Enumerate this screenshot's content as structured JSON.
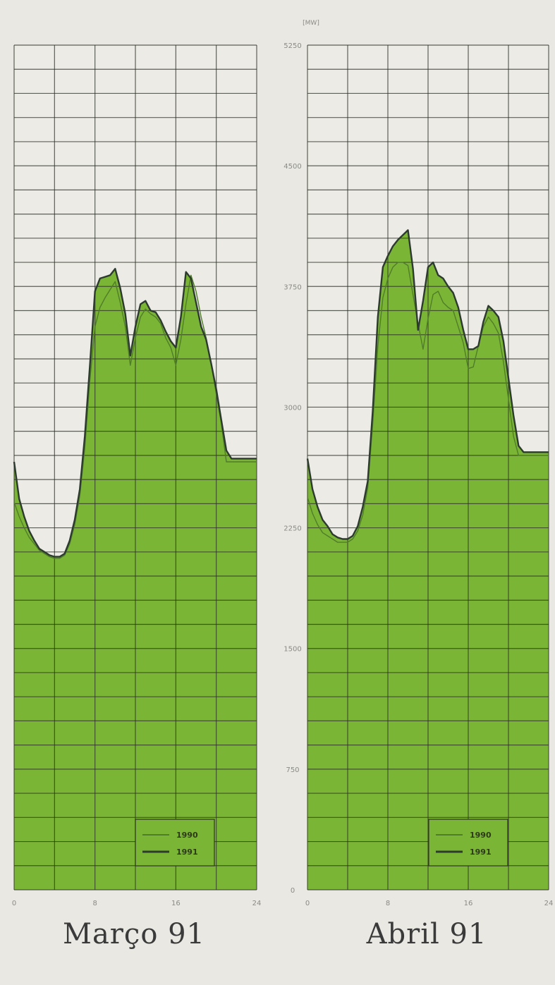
{
  "unit_label": "[MW]",
  "y_ticks": [
    "0",
    "750",
    "1500",
    "2250",
    "3000",
    "3750",
    "4500",
    "5250"
  ],
  "x_ticks": [
    "0",
    "8",
    "16",
    "24"
  ],
  "colors": {
    "fill": "#7bb535",
    "grid": "#2e3228",
    "line_1990": "#4f7d2a",
    "line_1991": "#2d3b2f",
    "background": "#e9e8e3"
  },
  "chart_data": [
    {
      "type": "line",
      "title": "Março 91",
      "xlabel": "",
      "ylabel": "[MW]",
      "xlim": [
        0,
        24
      ],
      "ylim": [
        0,
        5250
      ],
      "grid": true,
      "legend": "bottom-right",
      "x": [
        0,
        0.5,
        1,
        1.5,
        2,
        2.5,
        3,
        3.5,
        4,
        4.5,
        5,
        5.5,
        6,
        6.5,
        7,
        7.5,
        8,
        8.5,
        9,
        9.5,
        10,
        10.5,
        11,
        11.5,
        12,
        12.5,
        13,
        13.5,
        14,
        14.5,
        15,
        15.5,
        16,
        16.5,
        17,
        17.5,
        18,
        18.5,
        19,
        19.5,
        20,
        20.5,
        21,
        21.5,
        22,
        22.5,
        23,
        23.5,
        24
      ],
      "series": [
        {
          "name": "1990",
          "values": [
            2410,
            2320,
            2250,
            2190,
            2150,
            2110,
            2090,
            2070,
            2060,
            2060,
            2080,
            2150,
            2270,
            2450,
            2750,
            3170,
            3500,
            3620,
            3680,
            3730,
            3780,
            3650,
            3500,
            3260,
            3430,
            3560,
            3610,
            3580,
            3560,
            3520,
            3430,
            3370,
            3260,
            3420,
            3640,
            3820,
            3720,
            3560,
            3430,
            3270,
            3080,
            2900,
            2660,
            2660,
            2660,
            2660,
            2660,
            2660,
            2660
          ]
        },
        {
          "name": "1991",
          "values": [
            2660,
            2430,
            2320,
            2230,
            2170,
            2120,
            2100,
            2080,
            2070,
            2070,
            2090,
            2170,
            2300,
            2490,
            2820,
            3260,
            3720,
            3800,
            3810,
            3820,
            3860,
            3740,
            3580,
            3320,
            3500,
            3640,
            3660,
            3600,
            3590,
            3540,
            3470,
            3410,
            3370,
            3560,
            3840,
            3800,
            3650,
            3500,
            3420,
            3270,
            3110,
            2920,
            2730,
            2680,
            2680,
            2680,
            2680,
            2680,
            2680
          ]
        }
      ]
    },
    {
      "type": "line",
      "title": "Abril 91",
      "xlabel": "",
      "ylabel": "[MW]",
      "xlim": [
        0,
        24
      ],
      "ylim": [
        0,
        5250
      ],
      "grid": true,
      "legend": "bottom-right",
      "x": [
        0,
        0.5,
        1,
        1.5,
        2,
        2.5,
        3,
        3.5,
        4,
        4.5,
        5,
        5.5,
        6,
        6.5,
        7,
        7.5,
        8,
        8.5,
        9,
        9.5,
        10,
        10.5,
        11,
        11.5,
        12,
        12.5,
        13,
        13.5,
        14,
        14.5,
        15,
        15.5,
        16,
        16.5,
        17,
        17.5,
        18,
        18.5,
        19,
        19.5,
        20,
        20.5,
        21,
        21.5,
        22,
        22.5,
        23,
        23.5,
        24
      ],
      "series": [
        {
          "name": "1990",
          "values": [
            2440,
            2340,
            2270,
            2220,
            2200,
            2180,
            2160,
            2160,
            2160,
            2180,
            2230,
            2330,
            2500,
            2900,
            3380,
            3680,
            3800,
            3870,
            3900,
            3900,
            3880,
            3700,
            3520,
            3360,
            3550,
            3700,
            3720,
            3650,
            3620,
            3600,
            3500,
            3400,
            3240,
            3250,
            3380,
            3500,
            3560,
            3520,
            3460,
            3280,
            3050,
            2820,
            2700,
            2700,
            2700,
            2700,
            2700,
            2700,
            2700
          ]
        },
        {
          "name": "1991",
          "values": [
            2680,
            2490,
            2380,
            2300,
            2260,
            2210,
            2190,
            2180,
            2180,
            2200,
            2260,
            2380,
            2540,
            2980,
            3560,
            3870,
            3940,
            4000,
            4040,
            4070,
            4100,
            3860,
            3480,
            3660,
            3870,
            3900,
            3820,
            3800,
            3750,
            3710,
            3620,
            3480,
            3360,
            3360,
            3380,
            3530,
            3630,
            3600,
            3560,
            3410,
            3180,
            2950,
            2760,
            2720,
            2720,
            2720,
            2720,
            2720,
            2720
          ]
        }
      ]
    }
  ]
}
